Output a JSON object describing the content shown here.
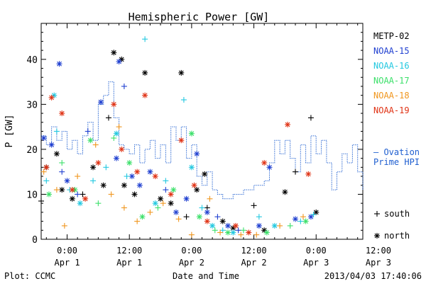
{
  "chart_data": {
    "type": "scatter",
    "title": "Hemispheric Power [GW]",
    "ylabel": "P [GW]",
    "xlabel": "Date and Time",
    "x_unit": "hours from 2013-04-01 00:00 UT",
    "xlim": [
      -5,
      57
    ],
    "ylim": [
      0,
      48
    ],
    "y_ticks": [
      0,
      10,
      20,
      30,
      40
    ],
    "x_ticks": [
      {
        "x": 0,
        "time": "0:00",
        "date": "Apr 1"
      },
      {
        "x": 12,
        "time": "12:00",
        "date": "Apr 1"
      },
      {
        "x": 24,
        "time": "0:00",
        "date": "Apr 2"
      },
      {
        "x": 36,
        "time": "12:00",
        "date": "Apr 2"
      },
      {
        "x": 48,
        "time": "0:00",
        "date": "Apr 3"
      },
      {
        "x": 60,
        "time": "12:00",
        "date": "Apr 3"
      }
    ],
    "grid": false,
    "legend_position": "right",
    "marker_legend": [
      {
        "symbol": "+",
        "label": "south"
      },
      {
        "symbol": "*",
        "label": "north"
      }
    ],
    "series": [
      {
        "name": "METP-02",
        "color": "#000000",
        "points": [
          {
            "x": -5,
            "y": 8.5,
            "m": "+"
          },
          {
            "x": -4,
            "y": 16,
            "m": "*"
          },
          {
            "x": -2,
            "y": 19,
            "m": "*"
          },
          {
            "x": -1,
            "y": 11,
            "m": "*"
          },
          {
            "x": 1,
            "y": 9,
            "m": "*"
          },
          {
            "x": 3,
            "y": 10,
            "m": "+"
          },
          {
            "x": 5,
            "y": 16,
            "m": "*"
          },
          {
            "x": 7,
            "y": 12,
            "m": "*"
          },
          {
            "x": 8,
            "y": 27,
            "m": "+"
          },
          {
            "x": 9,
            "y": 41.5,
            "m": "*"
          },
          {
            "x": 10.5,
            "y": 40,
            "m": "*"
          },
          {
            "x": 11,
            "y": 12,
            "m": "*"
          },
          {
            "x": 13,
            "y": 10,
            "m": "*"
          },
          {
            "x": 15,
            "y": 37,
            "m": "*"
          },
          {
            "x": 18,
            "y": 9,
            "m": "*"
          },
          {
            "x": 20,
            "y": 8,
            "m": "*"
          },
          {
            "x": 22,
            "y": 37,
            "m": "*"
          },
          {
            "x": 23,
            "y": 5,
            "m": "+"
          },
          {
            "x": 25,
            "y": 11,
            "m": "*"
          },
          {
            "x": 26.5,
            "y": 14.5,
            "m": "*"
          },
          {
            "x": 27,
            "y": 7,
            "m": "+"
          },
          {
            "x": 30,
            "y": 4,
            "m": "*"
          },
          {
            "x": 32,
            "y": 2.5,
            "m": "*"
          },
          {
            "x": 36,
            "y": 7.5,
            "m": "+"
          },
          {
            "x": 38,
            "y": 2,
            "m": "*"
          },
          {
            "x": 42,
            "y": 10.5,
            "m": "*"
          },
          {
            "x": 44,
            "y": 15,
            "m": "+"
          },
          {
            "x": 47,
            "y": 27,
            "m": "+"
          },
          {
            "x": 48,
            "y": 6,
            "m": "*"
          }
        ]
      },
      {
        "name": "NOAA-15",
        "color": "#1f3fd0",
        "points": [
          {
            "x": -4.5,
            "y": 22.5,
            "m": "*"
          },
          {
            "x": -3,
            "y": 21,
            "m": "*"
          },
          {
            "x": -1.5,
            "y": 39,
            "m": "*"
          },
          {
            "x": -1,
            "y": 15,
            "m": "+"
          },
          {
            "x": 0,
            "y": 13,
            "m": "*"
          },
          {
            "x": 2,
            "y": 10,
            "m": "+"
          },
          {
            "x": 4,
            "y": 24,
            "m": "+"
          },
          {
            "x": 6.5,
            "y": 30.5,
            "m": "*"
          },
          {
            "x": 9.5,
            "y": 18,
            "m": "*"
          },
          {
            "x": 10,
            "y": 39.5,
            "m": "*"
          },
          {
            "x": 11,
            "y": 34,
            "m": "+"
          },
          {
            "x": 12.5,
            "y": 14,
            "m": "*"
          },
          {
            "x": 14,
            "y": 12,
            "m": "*"
          },
          {
            "x": 16,
            "y": 15,
            "m": "*"
          },
          {
            "x": 19,
            "y": 11,
            "m": "+"
          },
          {
            "x": 21,
            "y": 6,
            "m": "*"
          },
          {
            "x": 23,
            "y": 9,
            "m": "*"
          },
          {
            "x": 25,
            "y": 19,
            "m": "*"
          },
          {
            "x": 27,
            "y": 6,
            "m": "*"
          },
          {
            "x": 29,
            "y": 5,
            "m": "+"
          },
          {
            "x": 31,
            "y": 3,
            "m": "*"
          },
          {
            "x": 33,
            "y": 2,
            "m": "+"
          },
          {
            "x": 37,
            "y": 3,
            "m": "*"
          },
          {
            "x": 39,
            "y": 16,
            "m": "*"
          },
          {
            "x": 44,
            "y": 4.5,
            "m": "*"
          },
          {
            "x": 47,
            "y": 5,
            "m": "*"
          }
        ]
      },
      {
        "name": "NOAA-16",
        "color": "#22c8e0",
        "points": [
          {
            "x": -4,
            "y": 13,
            "m": "+"
          },
          {
            "x": -2.5,
            "y": 32,
            "m": "*"
          },
          {
            "x": -2,
            "y": 24,
            "m": "+"
          },
          {
            "x": 0.5,
            "y": 11,
            "m": "+"
          },
          {
            "x": 2.5,
            "y": 8,
            "m": "*"
          },
          {
            "x": 5,
            "y": 13,
            "m": "+"
          },
          {
            "x": 7.5,
            "y": 16,
            "m": "+"
          },
          {
            "x": 9.5,
            "y": 23.5,
            "m": "*"
          },
          {
            "x": 11.5,
            "y": 14,
            "m": "+"
          },
          {
            "x": 15,
            "y": 44.5,
            "m": "+"
          },
          {
            "x": 17,
            "y": 8,
            "m": "*"
          },
          {
            "x": 19,
            "y": 13,
            "m": "+"
          },
          {
            "x": 22.5,
            "y": 31,
            "m": "+"
          },
          {
            "x": 24,
            "y": 16,
            "m": "*"
          },
          {
            "x": 26,
            "y": 7,
            "m": "+"
          },
          {
            "x": 28,
            "y": 3,
            "m": "*"
          },
          {
            "x": 30,
            "y": 2,
            "m": "+"
          },
          {
            "x": 32,
            "y": 1.5,
            "m": "*"
          },
          {
            "x": 37,
            "y": 5,
            "m": "+"
          },
          {
            "x": 40,
            "y": 3,
            "m": "*"
          },
          {
            "x": 45,
            "y": 4,
            "m": "+"
          },
          {
            "x": 47.5,
            "y": 5.5,
            "m": "+"
          }
        ]
      },
      {
        "name": "NOAA-17",
        "color": "#3ce06a",
        "points": [
          {
            "x": -3.5,
            "y": 10,
            "m": "*"
          },
          {
            "x": -1,
            "y": 17,
            "m": "+"
          },
          {
            "x": 1.5,
            "y": 11,
            "m": "*"
          },
          {
            "x": 4.5,
            "y": 22,
            "m": "*"
          },
          {
            "x": 6,
            "y": 8,
            "m": "+"
          },
          {
            "x": 9,
            "y": 22.5,
            "m": "+"
          },
          {
            "x": 12,
            "y": 17,
            "m": "*"
          },
          {
            "x": 14.5,
            "y": 5,
            "m": "*"
          },
          {
            "x": 17.5,
            "y": 7,
            "m": "+"
          },
          {
            "x": 20.5,
            "y": 11,
            "m": "*"
          },
          {
            "x": 24,
            "y": 23.5,
            "m": "*"
          },
          {
            "x": 25.5,
            "y": 5,
            "m": "*"
          },
          {
            "x": 28.5,
            "y": 2,
            "m": "+"
          },
          {
            "x": 31,
            "y": 1.5,
            "m": "*"
          },
          {
            "x": 34,
            "y": 2,
            "m": "+"
          },
          {
            "x": 38.5,
            "y": 1.5,
            "m": "*"
          },
          {
            "x": 43,
            "y": 3,
            "m": "+"
          },
          {
            "x": 46,
            "y": 4,
            "m": "*"
          }
        ]
      },
      {
        "name": "NOAA-18",
        "color": "#f0961e",
        "points": [
          {
            "x": -4.5,
            "y": 15,
            "m": "+"
          },
          {
            "x": -2,
            "y": 11,
            "m": "+"
          },
          {
            "x": -0.5,
            "y": 3,
            "m": "+"
          },
          {
            "x": 2,
            "y": 14,
            "m": "+"
          },
          {
            "x": 5.5,
            "y": 21,
            "m": "+"
          },
          {
            "x": 8.5,
            "y": 10,
            "m": "+"
          },
          {
            "x": 10,
            "y": 25,
            "m": "+"
          },
          {
            "x": 11,
            "y": 7,
            "m": "+"
          },
          {
            "x": 13.5,
            "y": 4,
            "m": "+"
          },
          {
            "x": 16,
            "y": 6,
            "m": "+"
          },
          {
            "x": 18.5,
            "y": 8,
            "m": "+"
          },
          {
            "x": 21.5,
            "y": 4.5,
            "m": "+"
          },
          {
            "x": 24,
            "y": 1,
            "m": "+"
          },
          {
            "x": 27.5,
            "y": 9,
            "m": "+"
          },
          {
            "x": 29.5,
            "y": 1.5,
            "m": "+"
          },
          {
            "x": 33.5,
            "y": 1,
            "m": "+"
          },
          {
            "x": 36.5,
            "y": 1,
            "m": "+"
          },
          {
            "x": 41,
            "y": 3,
            "m": "+"
          },
          {
            "x": 45.5,
            "y": 5,
            "m": "+"
          }
        ]
      },
      {
        "name": "NOAA-19",
        "color": "#e03214",
        "points": [
          {
            "x": -4,
            "y": 16,
            "m": "*"
          },
          {
            "x": -3,
            "y": 31.5,
            "m": "*"
          },
          {
            "x": -1,
            "y": 28,
            "m": "*"
          },
          {
            "x": 1,
            "y": 11,
            "m": "*"
          },
          {
            "x": 3.5,
            "y": 9,
            "m": "*"
          },
          {
            "x": 6,
            "y": 17,
            "m": "*"
          },
          {
            "x": 9,
            "y": 30,
            "m": "*"
          },
          {
            "x": 10.5,
            "y": 20,
            "m": "*"
          },
          {
            "x": 13.5,
            "y": 15,
            "m": "*"
          },
          {
            "x": 15,
            "y": 32,
            "m": "*"
          },
          {
            "x": 17,
            "y": 14,
            "m": "*"
          },
          {
            "x": 20,
            "y": 10,
            "m": "*"
          },
          {
            "x": 22,
            "y": 22,
            "m": "*"
          },
          {
            "x": 24.5,
            "y": 12,
            "m": "*"
          },
          {
            "x": 27,
            "y": 4,
            "m": "*"
          },
          {
            "x": 32.5,
            "y": 3,
            "m": "*"
          },
          {
            "x": 35,
            "y": 1.5,
            "m": "*"
          },
          {
            "x": 38,
            "y": 17,
            "m": "*"
          },
          {
            "x": 42.5,
            "y": 25.5,
            "m": "*"
          },
          {
            "x": 46.5,
            "y": 14.5,
            "m": "*"
          }
        ]
      }
    ],
    "ovation": {
      "name": "Ovation Prime HPI",
      "legend_lines": [
        "— Ovation",
        "Prime HPI"
      ],
      "color": "#1f5fd0",
      "steps": [
        {
          "x": -5,
          "y": 23
        },
        {
          "x": -4,
          "y": 21
        },
        {
          "x": -3,
          "y": 25
        },
        {
          "x": -2,
          "y": 22
        },
        {
          "x": -1,
          "y": 24
        },
        {
          "x": 0,
          "y": 20
        },
        {
          "x": 1,
          "y": 22
        },
        {
          "x": 2,
          "y": 19
        },
        {
          "x": 3,
          "y": 23
        },
        {
          "x": 4,
          "y": 26
        },
        {
          "x": 5,
          "y": 22
        },
        {
          "x": 6,
          "y": 30
        },
        {
          "x": 7,
          "y": 32
        },
        {
          "x": 8,
          "y": 35
        },
        {
          "x": 9,
          "y": 27
        },
        {
          "x": 10,
          "y": 21
        },
        {
          "x": 11,
          "y": 20
        },
        {
          "x": 12,
          "y": 19
        },
        {
          "x": 13,
          "y": 21
        },
        {
          "x": 14,
          "y": 17
        },
        {
          "x": 15,
          "y": 20
        },
        {
          "x": 16,
          "y": 22
        },
        {
          "x": 17,
          "y": 18
        },
        {
          "x": 18,
          "y": 21
        },
        {
          "x": 19,
          "y": 17
        },
        {
          "x": 20,
          "y": 25
        },
        {
          "x": 21,
          "y": 22
        },
        {
          "x": 22,
          "y": 25
        },
        {
          "x": 23,
          "y": 18
        },
        {
          "x": 24,
          "y": 21
        },
        {
          "x": 25,
          "y": 14
        },
        {
          "x": 26,
          "y": 12
        },
        {
          "x": 27,
          "y": 15
        },
        {
          "x": 28,
          "y": 11
        },
        {
          "x": 29,
          "y": 10
        },
        {
          "x": 30,
          "y": 9
        },
        {
          "x": 32,
          "y": 10
        },
        {
          "x": 34,
          "y": 11
        },
        {
          "x": 36,
          "y": 12
        },
        {
          "x": 38,
          "y": 13
        },
        {
          "x": 39,
          "y": 17
        },
        {
          "x": 40,
          "y": 22
        },
        {
          "x": 41,
          "y": 19
        },
        {
          "x": 42,
          "y": 22
        },
        {
          "x": 43,
          "y": 18
        },
        {
          "x": 44,
          "y": 15
        },
        {
          "x": 45,
          "y": 21
        },
        {
          "x": 46,
          "y": 17
        },
        {
          "x": 47,
          "y": 23
        },
        {
          "x": 48,
          "y": 19
        },
        {
          "x": 49,
          "y": 22
        },
        {
          "x": 50,
          "y": 17
        },
        {
          "x": 51,
          "y": 11
        },
        {
          "x": 52,
          "y": 15
        },
        {
          "x": 53,
          "y": 19
        },
        {
          "x": 54,
          "y": 17
        },
        {
          "x": 55,
          "y": 21
        },
        {
          "x": 56,
          "y": 15
        },
        {
          "x": 57,
          "y": 11
        }
      ]
    }
  },
  "footer": {
    "plot_credit": "Plot: CCMC",
    "timestamp": "2013/04/03 17:40:06"
  }
}
